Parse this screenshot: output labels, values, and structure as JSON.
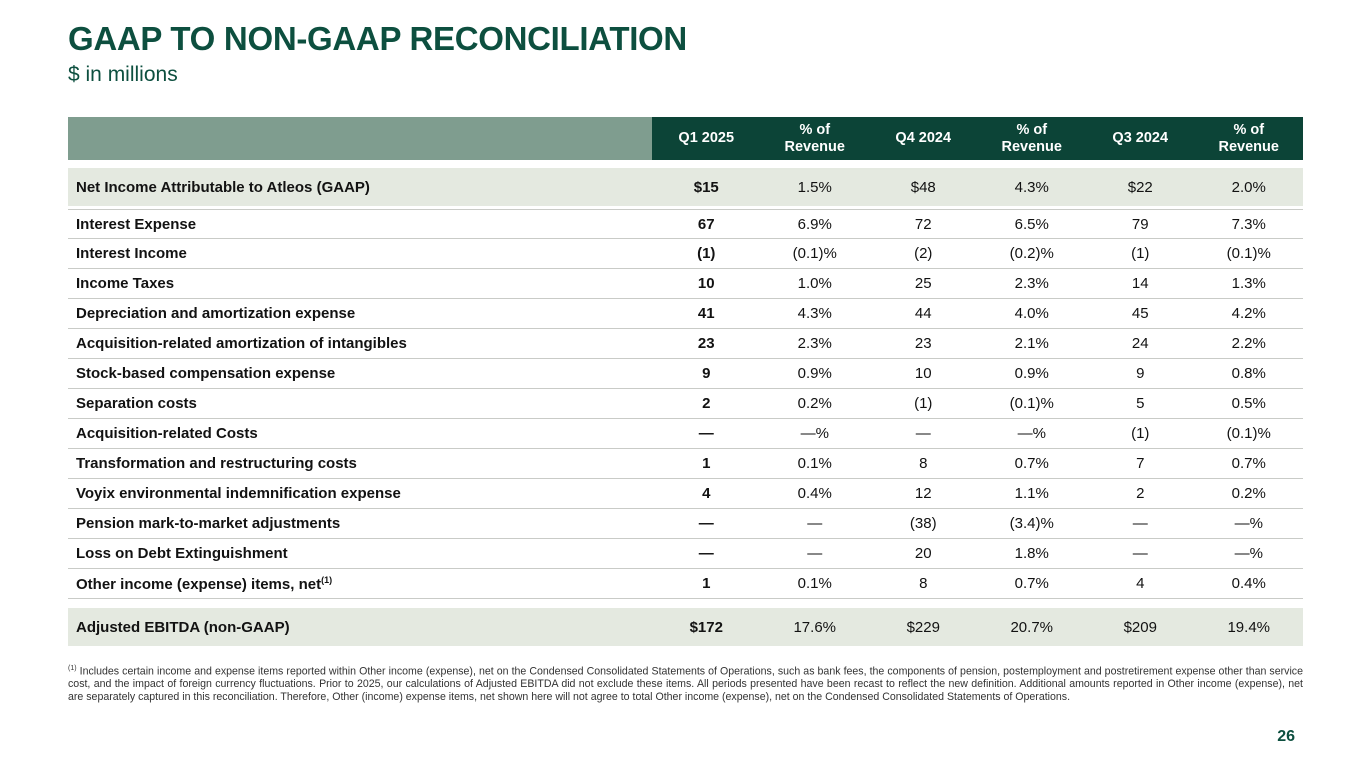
{
  "slide": {
    "title": "GAAP TO NON-GAAP RECONCILIATION",
    "subtitle": "$ in millions",
    "page_number": "26",
    "footnote_marker": "(1)",
    "footnote": "Includes certain income and expense items reported within Other income (expense), net on the Condensed Consolidated Statements of Operations, such as bank fees, the components of pension, postemployment and postretirement expense other than service cost, and the impact of foreign currency fluctuations. Prior to 2025, our calculations of Adjusted EBITDA did not exclude these items. All periods presented have been recast to reflect the new definition. Additional amounts reported in Other income (expense), net are separately captured in this reconciliation. Therefore, Other (income) expense items, net shown here will not agree to total Other income (expense), net on the Condensed Consolidated Statements of Operations."
  },
  "colors": {
    "header_dark_green": "#0c4437",
    "header_sage": "#7f9d8f",
    "row_highlight": "#e4e9e0",
    "title_green": "#0d4f3f",
    "hairline": "#c9cbc7"
  },
  "table": {
    "columns": [
      "Q1 2025",
      "% of\nRevenue",
      "Q4 2024",
      "% of\nRevenue",
      "Q3 2024",
      "% of\nRevenue"
    ],
    "rows": [
      {
        "label": "Net Income Attributable to Atleos (GAAP)",
        "values": [
          "$15",
          "1.5%",
          "$48",
          "4.3%",
          "$22",
          "2.0%"
        ],
        "style": "first-highlight"
      },
      {
        "label": "Interest Expense",
        "values": [
          "67",
          "6.9%",
          "72",
          "6.5%",
          "79",
          "7.3%"
        ],
        "style": "standard"
      },
      {
        "label": "Interest Income",
        "values": [
          "(1)",
          "(0.1)%",
          "(2)",
          "(0.2)%",
          "(1)",
          "(0.1)%"
        ],
        "style": "standard"
      },
      {
        "label": "Income Taxes",
        "values": [
          "10",
          "1.0%",
          "25",
          "2.3%",
          "14",
          "1.3%"
        ],
        "style": "standard"
      },
      {
        "label": "Depreciation and amortization expense",
        "values": [
          "41",
          "4.3%",
          "44",
          "4.0%",
          "45",
          "4.2%"
        ],
        "style": "standard"
      },
      {
        "label": "Acquisition-related amortization of intangibles",
        "values": [
          "23",
          "2.3%",
          "23",
          "2.1%",
          "24",
          "2.2%"
        ],
        "style": "standard"
      },
      {
        "label": "Stock-based compensation expense",
        "values": [
          "9",
          "0.9%",
          "10",
          "0.9%",
          "9",
          "0.8%"
        ],
        "style": "standard"
      },
      {
        "label": "Separation costs",
        "values": [
          "2",
          "0.2%",
          "(1)",
          "(0.1)%",
          "5",
          "0.5%"
        ],
        "style": "standard"
      },
      {
        "label": "Acquisition-related Costs",
        "values": [
          "—",
          "—%",
          "—",
          "—%",
          "(1)",
          "(0.1)%"
        ],
        "style": "standard"
      },
      {
        "label": "Transformation and restructuring costs",
        "values": [
          "1",
          "0.1%",
          "8",
          "0.7%",
          "7",
          "0.7%"
        ],
        "style": "standard"
      },
      {
        "label": "Voyix environmental indemnification expense",
        "values": [
          "4",
          "0.4%",
          "12",
          "1.1%",
          "2",
          "0.2%"
        ],
        "style": "standard"
      },
      {
        "label": "Pension mark-to-market adjustments",
        "values": [
          "—",
          "—",
          "(38)",
          "(3.4)%",
          "—",
          "—%"
        ],
        "style": "standard"
      },
      {
        "label": "Loss on Debt Extinguishment",
        "values": [
          "—",
          "—",
          "20",
          "1.8%",
          "—",
          "—%"
        ],
        "style": "standard"
      },
      {
        "label": "Other income (expense) items, net",
        "label_superscript": "(1)",
        "values": [
          "1",
          "0.1%",
          "8",
          "0.7%",
          "4",
          "0.4%"
        ],
        "style": "standard"
      },
      {
        "label": "Adjusted EBITDA (non-GAAP)",
        "values": [
          "$172",
          "17.6%",
          "$229",
          "20.7%",
          "$209",
          "19.4%"
        ],
        "style": "total-highlight"
      }
    ]
  }
}
